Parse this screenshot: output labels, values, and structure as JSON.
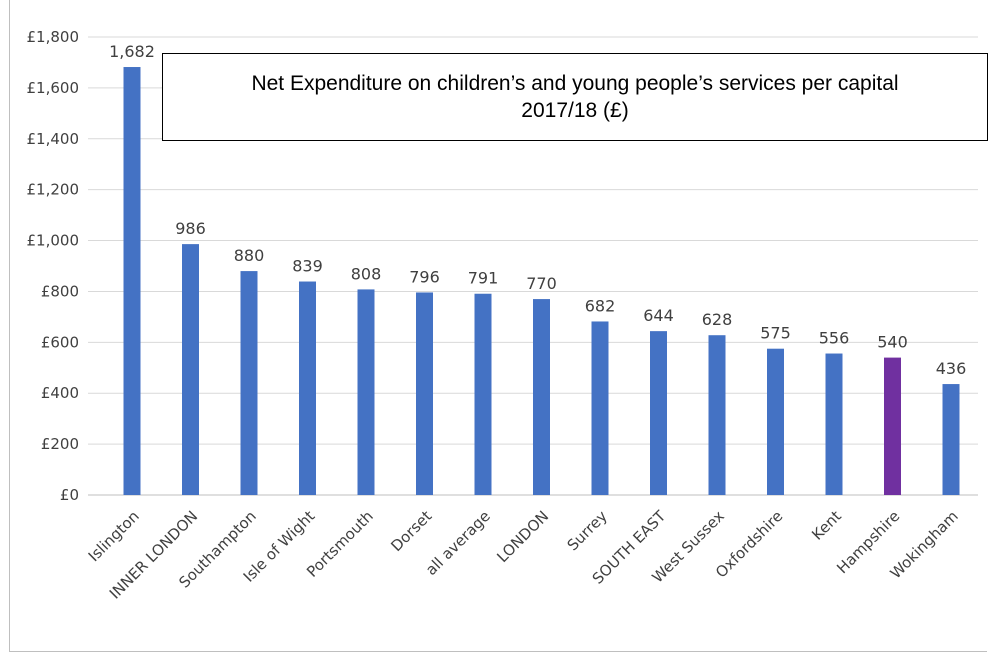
{
  "chart_data": {
    "type": "bar",
    "title": "Net Expenditure on children’s and young people’s services per capital 2017/18 (£)",
    "categories": [
      "Islington",
      "INNER LONDON",
      "Southampton",
      "Isle of Wight",
      "Portsmouth",
      "Dorset",
      "all average",
      "LONDON",
      "Surrey",
      "SOUTH EAST",
      "West Sussex",
      "Oxfordshire",
      "Kent",
      "Hampshire",
      "Wokingham"
    ],
    "values": [
      1682,
      986,
      880,
      839,
      808,
      796,
      791,
      770,
      682,
      644,
      628,
      575,
      556,
      540,
      436
    ],
    "value_labels": [
      "1,682",
      "986",
      "880",
      "839",
      "808",
      "796",
      "791",
      "770",
      "682",
      "644",
      "628",
      "575",
      "556",
      "540",
      "436"
    ],
    "ylim": [
      0,
      1800
    ],
    "yticks": [
      0,
      200,
      400,
      600,
      800,
      1000,
      1200,
      1400,
      1600,
      1800
    ],
    "ytick_labels": [
      "£0",
      "£200",
      "£400",
      "£600",
      "£800",
      "£1,000",
      "£1,200",
      "£1,400",
      "£1,600",
      "£1,800"
    ],
    "grid": true,
    "legend": "none",
    "colors": {
      "bar": "#4472c4",
      "highlight": "#7030a0",
      "grid": "#d9d9d9"
    },
    "highlight_category": "Hampshire",
    "xlabel": "",
    "ylabel": ""
  }
}
